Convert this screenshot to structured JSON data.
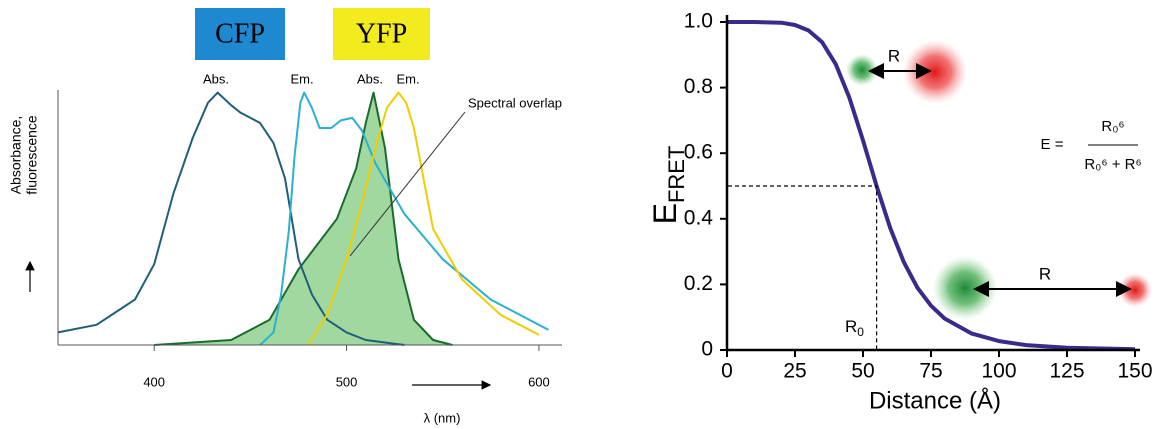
{
  "chart_data": [
    {
      "type": "line",
      "groups": [
        {
          "label": "CFP",
          "color": "#1e88d0"
        },
        {
          "label": "YFP",
          "color": "#f2ec1f"
        }
      ],
      "y_label": [
        "Absorbance,",
        "fluorescence"
      ],
      "x_label": "λ (nm)",
      "annotation": "Spectral overlap",
      "xlim": [
        350,
        612
      ],
      "xticks": [
        400,
        500,
        600
      ],
      "ylim": [
        0,
        1.05
      ],
      "series": [
        {
          "name": "Abs.",
          "color": "#1f5f7a",
          "x": [
            350,
            370,
            390,
            400,
            410,
            420,
            428,
            433,
            440,
            445,
            455,
            462,
            468,
            475,
            482,
            490,
            500,
            510,
            520,
            530
          ],
          "values": [
            0.05,
            0.08,
            0.18,
            0.32,
            0.6,
            0.82,
            0.96,
            1.0,
            0.95,
            0.92,
            0.88,
            0.8,
            0.66,
            0.34,
            0.2,
            0.1,
            0.05,
            0.02,
            0.01,
            0
          ]
        },
        {
          "name": "Em.",
          "color": "#2ab0d0",
          "x": [
            455,
            462,
            466,
            470,
            473,
            476,
            478,
            482,
            486,
            492,
            497,
            503,
            508,
            515,
            530,
            550,
            575,
            605
          ],
          "values": [
            0,
            0.05,
            0.2,
            0.45,
            0.75,
            0.96,
            1.0,
            0.94,
            0.86,
            0.86,
            0.89,
            0.9,
            0.85,
            0.72,
            0.52,
            0.34,
            0.18,
            0.06
          ]
        },
        {
          "name": "Abs.",
          "color": "#1a6b2e",
          "fill": "#8fd18f",
          "x": [
            400,
            440,
            460,
            475,
            485,
            495,
            505,
            510,
            514,
            520,
            527,
            535,
            545,
            555
          ],
          "values": [
            0,
            0.02,
            0.1,
            0.3,
            0.4,
            0.5,
            0.7,
            0.88,
            1.0,
            0.78,
            0.34,
            0.1,
            0.02,
            0
          ]
        },
        {
          "name": "Em.",
          "color": "#f0cc00",
          "x": [
            480,
            490,
            500,
            508,
            515,
            521,
            527,
            531,
            535,
            540,
            545,
            560,
            580,
            600
          ],
          "values": [
            0,
            0.12,
            0.34,
            0.56,
            0.78,
            0.94,
            1.0,
            0.96,
            0.86,
            0.66,
            0.46,
            0.26,
            0.12,
            0.04
          ]
        }
      ]
    },
    {
      "type": "line",
      "x_label": "Distance (Å)",
      "y_label": "E",
      "y_label_sub": "FRET",
      "xlim": [
        0,
        150
      ],
      "xticks": [
        0,
        25,
        50,
        75,
        100,
        125,
        150
      ],
      "ylim": [
        0,
        1
      ],
      "yticks": [
        0,
        0.2,
        0.4,
        0.6,
        0.8,
        {
          "value": 1,
          "label": "1.0"
        }
      ],
      "guide": {
        "x": 55,
        "y": 0.5,
        "label": "R",
        "label_sub": "0"
      },
      "distance_labels": [
        "R",
        "R"
      ],
      "formula": {
        "lhs": "E =",
        "numerator": "R₀⁶",
        "denominator": "R₀⁶ + R⁶"
      },
      "series": [
        {
          "color": "#3b2a8c",
          "x": [
            0,
            10,
            20,
            25,
            30,
            35,
            40,
            45,
            50,
            55,
            60,
            65,
            70,
            75,
            80,
            90,
            100,
            110,
            125,
            150
          ],
          "values": [
            1,
            1,
            0.998,
            0.991,
            0.974,
            0.938,
            0.871,
            0.769,
            0.639,
            0.5,
            0.372,
            0.268,
            0.19,
            0.135,
            0.096,
            0.05,
            0.027,
            0.015,
            0.007,
            0.0024
          ]
        }
      ]
    }
  ]
}
